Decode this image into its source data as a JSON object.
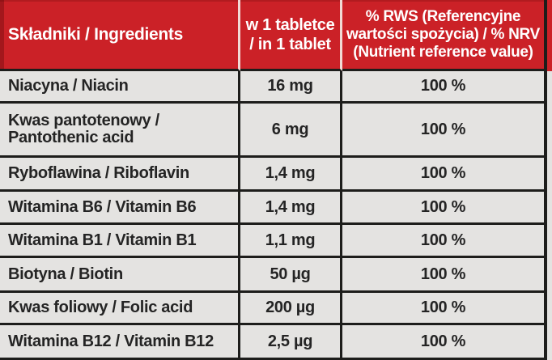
{
  "table": {
    "header": {
      "ingredients": {
        "lines": [
          "Składniki / Ingredients"
        ]
      },
      "per_tablet": {
        "lines": [
          "w 1 tabletce",
          "/ in 1 tablet"
        ]
      },
      "nrv": {
        "lines": [
          "% RWS (Referencyjne",
          "wartości spożycia) / % NRV",
          "(Nutrient reference value)"
        ]
      }
    },
    "rows": [
      {
        "name": [
          "Niacyna / Niacin"
        ],
        "amount": "16 mg",
        "nrv": "100 %"
      },
      {
        "name": [
          "Kwas pantotenowy /",
          "Pantothenic acid"
        ],
        "amount": "6 mg",
        "nrv": "100 %"
      },
      {
        "name": [
          "Ryboflawina / Riboflavin"
        ],
        "amount": "1,4 mg",
        "nrv": "100 %"
      },
      {
        "name": [
          "Witamina B6 / Vitamin B6"
        ],
        "amount": "1,4 mg",
        "nrv": "100 %"
      },
      {
        "name": [
          "Witamina B1 / Vitamin B1"
        ],
        "amount": "1,1 mg",
        "nrv": "100 %"
      },
      {
        "name": [
          "Biotyna / Biotin"
        ],
        "amount": "50 µg",
        "nrv": "100 %"
      },
      {
        "name": [
          "Kwas foliowy / Folic acid"
        ],
        "amount": "200 µg",
        "nrv": "100 %"
      },
      {
        "name": [
          "Witamina B12 / Vitamin B12"
        ],
        "amount": "2,5 µg",
        "nrv": "100 %"
      }
    ],
    "colors": {
      "header_bg": "#cb2127",
      "header_text": "#ffffff",
      "header_divider": "#f1d9d5",
      "body_bg": "#e4e3e1",
      "body_text": "#242424",
      "grid_line": "#1d1d1b"
    }
  }
}
